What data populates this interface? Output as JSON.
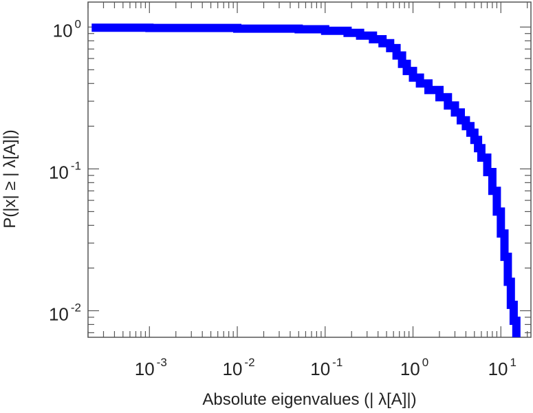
{
  "chart_data": {
    "type": "line",
    "xscale": "log",
    "yscale": "log",
    "xlabel": "Absolute eigenvalues (|     λ[A]|)",
    "ylabel": "P(|x|  ≥ | λ[A]|)",
    "xlim": [
      0.0002,
      22
    ],
    "ylim": [
      0.0065,
      1.5
    ],
    "grid": false,
    "x_ticks": [
      {
        "base": "10",
        "exp": "-3",
        "value": 0.001
      },
      {
        "base": "10",
        "exp": "-2",
        "value": 0.01
      },
      {
        "base": "10",
        "exp": "-1",
        "value": 0.1
      },
      {
        "base": "10",
        "exp": "0",
        "value": 1
      },
      {
        "base": "10",
        "exp": "1",
        "value": 10
      }
    ],
    "y_ticks": [
      {
        "base": "10",
        "exp": "0",
        "value": 1
      },
      {
        "base": "10",
        "exp": "-1",
        "value": 0.1
      },
      {
        "base": "10",
        "exp": "-2",
        "value": 0.01
      }
    ],
    "series": [
      {
        "color": "#0000ff",
        "x": [
          0.00022,
          0.001,
          0.01,
          0.05,
          0.1,
          0.18,
          0.25,
          0.35,
          0.45,
          0.55,
          0.65,
          0.75,
          0.85,
          1.0,
          1.2,
          1.5,
          2.0,
          2.5,
          3.0,
          3.5,
          4.0,
          4.5,
          5.0,
          5.5,
          6.0,
          7.0,
          8.0,
          9.0,
          10.0,
          11.0,
          12.0,
          13.0,
          14.0,
          15.0
        ],
        "y": [
          0.99,
          0.985,
          0.975,
          0.965,
          0.94,
          0.91,
          0.87,
          0.82,
          0.77,
          0.71,
          0.63,
          0.55,
          0.49,
          0.44,
          0.4,
          0.36,
          0.32,
          0.28,
          0.25,
          0.22,
          0.2,
          0.18,
          0.16,
          0.14,
          0.12,
          0.095,
          0.07,
          0.05,
          0.035,
          0.024,
          0.016,
          0.011,
          0.0085,
          0.0065
        ]
      }
    ]
  }
}
